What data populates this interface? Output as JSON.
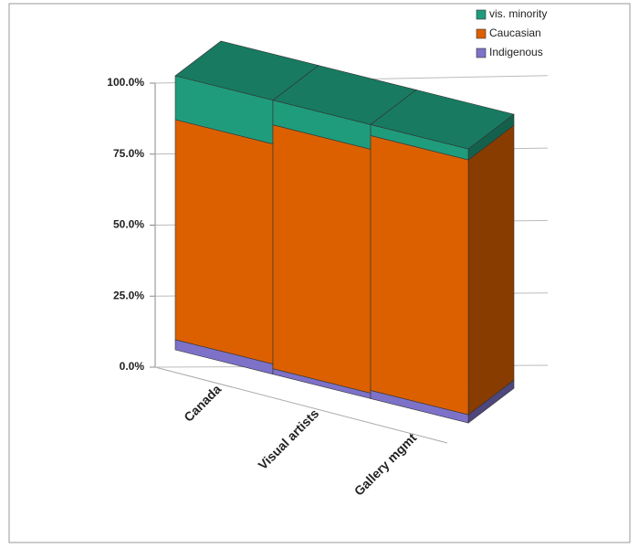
{
  "chart_data": {
    "type": "bar3d_stacked",
    "categories": [
      "Canada",
      "Visual artists",
      "Gallery mgmt"
    ],
    "series": [
      {
        "name": "Indigenous",
        "color": "#7d72c8",
        "values": [
          3.7,
          2,
          3
        ]
      },
      {
        "name": "Caucasian",
        "color": "#dc6000",
        "values": [
          80.3,
          89,
          93
        ]
      },
      {
        "name": "vis. minority",
        "color": "#1f9c7c",
        "values": [
          16,
          9,
          4
        ]
      }
    ],
    "ylim": [
      0,
      100
    ],
    "yticks": [
      {
        "value": 0,
        "label": "0.0%"
      },
      {
        "value": 25,
        "label": "25.0%"
      },
      {
        "value": 50,
        "label": "50.0%"
      },
      {
        "value": 75,
        "label": "75.0%"
      },
      {
        "value": 100,
        "label": "100.0%"
      }
    ],
    "grid": true,
    "legend": "top-right"
  }
}
